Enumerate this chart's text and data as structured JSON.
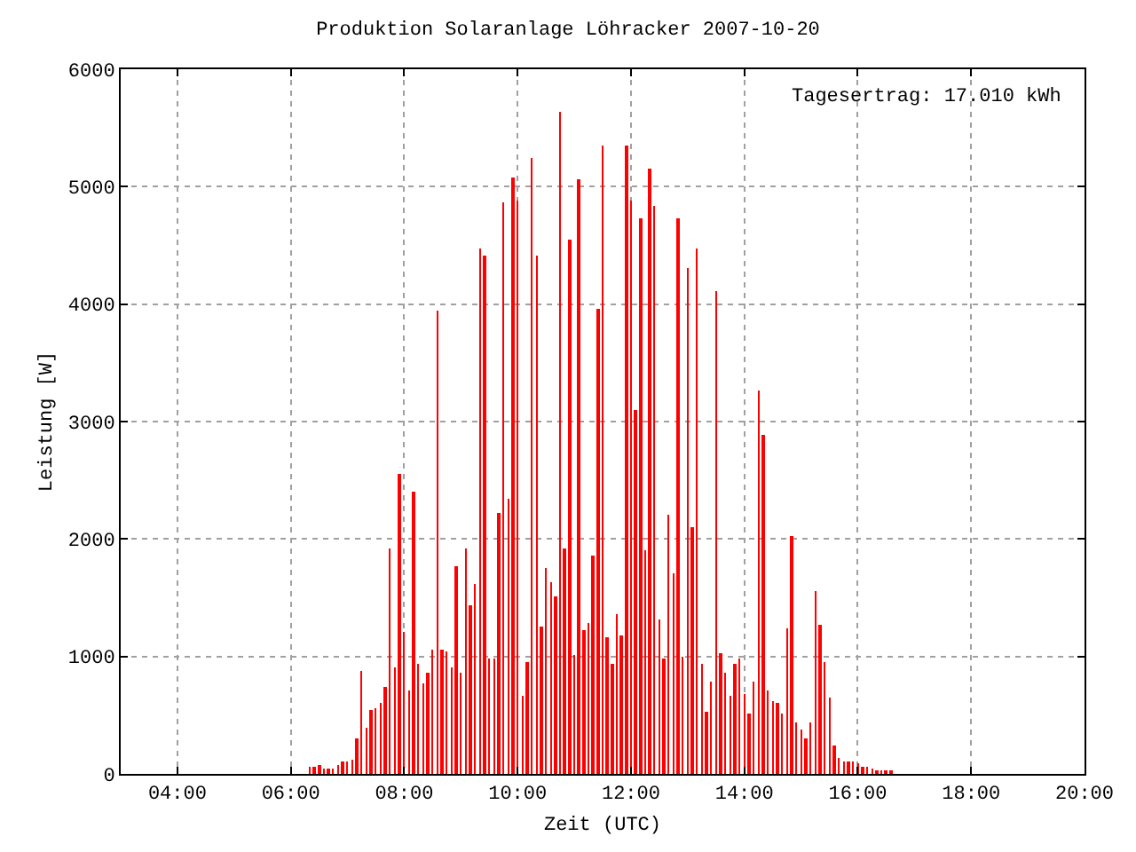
{
  "chart_data": {
    "type": "bar",
    "title": "Produktion Solaranlage Löhracker 2007-10-20",
    "xlabel": "Zeit (UTC)",
    "ylabel": "Leistung [W]",
    "annotations": [
      "Tagesertrag: 17.010 kWh"
    ],
    "x": [
      6.3333,
      6.4167,
      6.5,
      6.5833,
      6.6667,
      6.75,
      6.8333,
      6.9167,
      7.0,
      7.0833,
      7.1667,
      7.25,
      7.3333,
      7.4167,
      7.5,
      7.5833,
      7.6667,
      7.75,
      7.8333,
      7.9167,
      8.0,
      8.0833,
      8.1667,
      8.25,
      8.3333,
      8.4167,
      8.5,
      8.5833,
      8.6667,
      8.75,
      8.8333,
      8.9167,
      9.0,
      9.0833,
      9.1667,
      9.25,
      9.3333,
      9.4167,
      9.5,
      9.5833,
      9.6667,
      9.75,
      9.8333,
      9.9167,
      10.0,
      10.0833,
      10.1667,
      10.25,
      10.3333,
      10.4167,
      10.5,
      10.5833,
      10.6667,
      10.75,
      10.8333,
      10.9167,
      11.0,
      11.0833,
      11.1667,
      11.25,
      11.3333,
      11.4167,
      11.5,
      11.5833,
      11.6667,
      11.75,
      11.8333,
      11.9167,
      12.0,
      12.0833,
      12.1667,
      12.25,
      12.3333,
      12.4167,
      12.5,
      12.5833,
      12.6667,
      12.75,
      12.8333,
      12.9167,
      13.0,
      13.0833,
      13.1667,
      13.25,
      13.3333,
      13.4167,
      13.5,
      13.5833,
      13.6667,
      13.75,
      13.8333,
      13.9167,
      14.0,
      14.0833,
      14.1667,
      14.25,
      14.3333,
      14.4167,
      14.5,
      14.5833,
      14.6667,
      14.75,
      14.8333,
      14.9167,
      15.0,
      15.0833,
      15.1667,
      15.25,
      15.3333,
      15.4167,
      15.5,
      15.5833,
      15.6667,
      15.75,
      15.8333,
      15.9167,
      16.0,
      16.0833,
      16.1667,
      16.25,
      16.3333,
      16.4167,
      16.5,
      16.5833
    ],
    "series": [
      {
        "color": "#ff0000",
        "values": [
          60,
          60,
          75,
          45,
          45,
          45,
          75,
          105,
          105,
          120,
          295,
          875,
          395,
          540,
          560,
          600,
          735,
          1915,
          900,
          2560,
          1215,
          710,
          2410,
          930,
          765,
          855,
          1065,
          3945,
          1065,
          1050,
          900,
          1765,
          855,
          1915,
          1440,
          1615,
          4470,
          4420,
          990,
          975,
          2215,
          4870,
          2350,
          5080,
          4885,
          660,
          945,
          5245,
          4420,
          1260,
          1750,
          1630,
          1510,
          5630,
          1915,
          4555,
          1020,
          5065,
          1230,
          1290,
          1855,
          3960,
          5350,
          1170,
          930,
          1365,
          1185,
          5350,
          4885,
          3095,
          4735,
          1900,
          5155,
          4840,
          1320,
          990,
          2200,
          1705,
          4735,
          1005,
          4305,
          2095,
          4480,
          930,
          525,
          780,
          4110,
          1035,
          855,
          660,
          930,
          975,
          685,
          510,
          790,
          3260,
          2885,
          705,
          615,
          600,
          510,
          1245,
          2020,
          440,
          380,
          305,
          440,
          1555,
          1275,
          945,
          645,
          245,
          140,
          110,
          110,
          110,
          95,
          65,
          65,
          50,
          35,
          35,
          35,
          20
        ]
      }
    ],
    "xlim": [
      3,
      20
    ],
    "xticks": [
      {
        "value": 4,
        "label": "04:00"
      },
      {
        "value": 6,
        "label": "06:00"
      },
      {
        "value": 8,
        "label": "08:00"
      },
      {
        "value": 10,
        "label": "10:00"
      },
      {
        "value": 12,
        "label": "12:00"
      },
      {
        "value": 14,
        "label": "14:00"
      },
      {
        "value": 16,
        "label": "16:00"
      },
      {
        "value": 18,
        "label": "18:00"
      },
      {
        "value": 20,
        "label": "20:00"
      }
    ],
    "ylim": [
      0,
      6000
    ],
    "yticks": [
      0,
      1000,
      2000,
      3000,
      4000,
      5000,
      6000
    ],
    "grid": true
  }
}
